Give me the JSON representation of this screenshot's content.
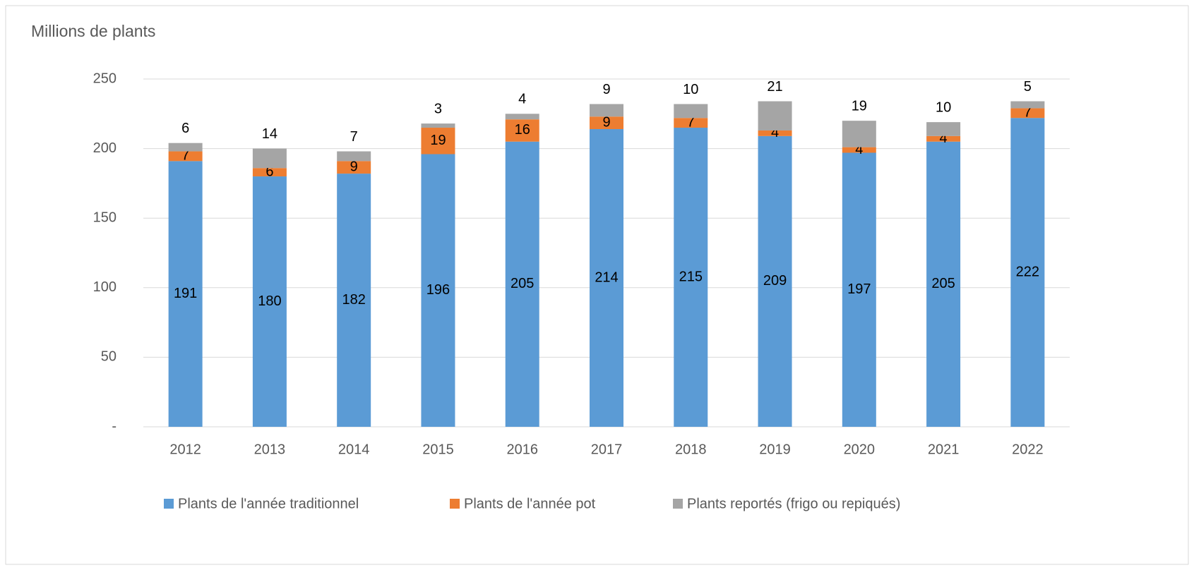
{
  "chart_data": {
    "type": "stacked_bar",
    "title": "Millions de plants",
    "categories": [
      "2012",
      "2013",
      "2014",
      "2015",
      "2016",
      "2017",
      "2018",
      "2019",
      "2020",
      "2021",
      "2022"
    ],
    "series": [
      {
        "name": "Plants de l'année traditionnel",
        "color": "#5b9bd5",
        "values": [
          191,
          180,
          182,
          196,
          205,
          214,
          215,
          209,
          197,
          205,
          222
        ]
      },
      {
        "name": "Plants de l'année pot",
        "color": "#ed7d31",
        "values": [
          7,
          6,
          9,
          19,
          16,
          9,
          7,
          4,
          4,
          4,
          7
        ]
      },
      {
        "name": "Plants reportés (frigo ou repiqués)",
        "color": "#a5a5a5",
        "values": [
          6,
          14,
          7,
          3,
          4,
          9,
          10,
          21,
          19,
          10,
          5
        ]
      }
    ],
    "ylim": [
      0,
      250
    ],
    "yticks": [
      {
        "value": 0,
        "label": "-"
      },
      50,
      100,
      150,
      200,
      250
    ],
    "grid": true,
    "legend": "bottom"
  }
}
